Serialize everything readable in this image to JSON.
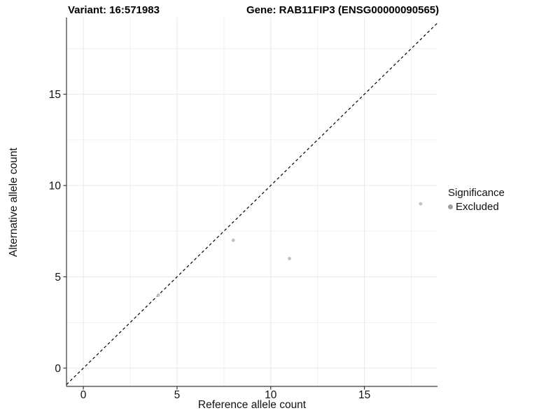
{
  "title": {
    "variant": "Variant: 16:571983",
    "gene": "Gene: RAB11FIP3 (ENSG00000090565)"
  },
  "chart_data": {
    "type": "scatter",
    "title": "Variant: 16:571983   Gene: RAB11FIP3 (ENSG00000090565)",
    "xlabel": "Reference allele count",
    "ylabel": "Alternative allele count",
    "xlim": [
      -0.9,
      18.9
    ],
    "ylim": [
      -1.0,
      19.2
    ],
    "xticks": [
      0,
      5,
      10,
      15
    ],
    "yticks": [
      0,
      5,
      10,
      15
    ],
    "minor_xticks": [
      2.5,
      7.5,
      12.5,
      17.5
    ],
    "minor_yticks": [
      2.5,
      7.5,
      12.5,
      17.5
    ],
    "grid": true,
    "identity_line": {
      "type": "y=x",
      "style": "dashed",
      "color": "#000000"
    },
    "series": [
      {
        "name": "Excluded",
        "color": "#c1c1c1",
        "points": [
          [
            4,
            4
          ],
          [
            8,
            7
          ],
          [
            11,
            6
          ],
          [
            18,
            9
          ]
        ]
      }
    ],
    "legend": {
      "position": "right",
      "title": "Significance",
      "items": [
        {
          "label": "Excluded",
          "color": "#9f9f9f"
        }
      ]
    },
    "colors": {
      "grid_major": "#e8e8e8",
      "grid_minor": "#f0f0f0",
      "axis_line": "#3a3a3a",
      "tick_mark": "#333333",
      "tick_label": "#111111"
    }
  }
}
